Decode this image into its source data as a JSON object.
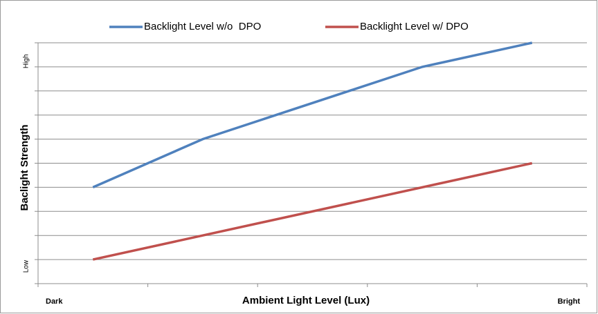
{
  "chart_data": {
    "type": "line",
    "x_label": "Ambient Light Level (Lux)",
    "y_label": "Baclight Strength",
    "xlim": [
      0,
      5
    ],
    "xtick_marks": [
      0,
      1,
      2,
      3,
      4,
      5
    ],
    "x_end_labels": {
      "left": "Dark",
      "right": "Bright"
    },
    "ylim": [
      0,
      10
    ],
    "grid_values": [
      0,
      1,
      2,
      3,
      4,
      5,
      6,
      7,
      8,
      9,
      10
    ],
    "yticks": [
      {
        "value": 1,
        "label": "Low"
      },
      {
        "value": 9,
        "label": "High"
      }
    ],
    "legend": "top",
    "series": [
      {
        "name": "Backlight Level w/o  DPO",
        "color": "#4f81bd",
        "x": [
          0.5,
          1.5,
          3.5,
          4.5
        ],
        "values": [
          4,
          6,
          9,
          10
        ]
      },
      {
        "name": "Backlight Level w/ DPO",
        "color": "#c0504d",
        "x": [
          0.5,
          4.5
        ],
        "values": [
          1,
          5
        ]
      }
    ]
  }
}
